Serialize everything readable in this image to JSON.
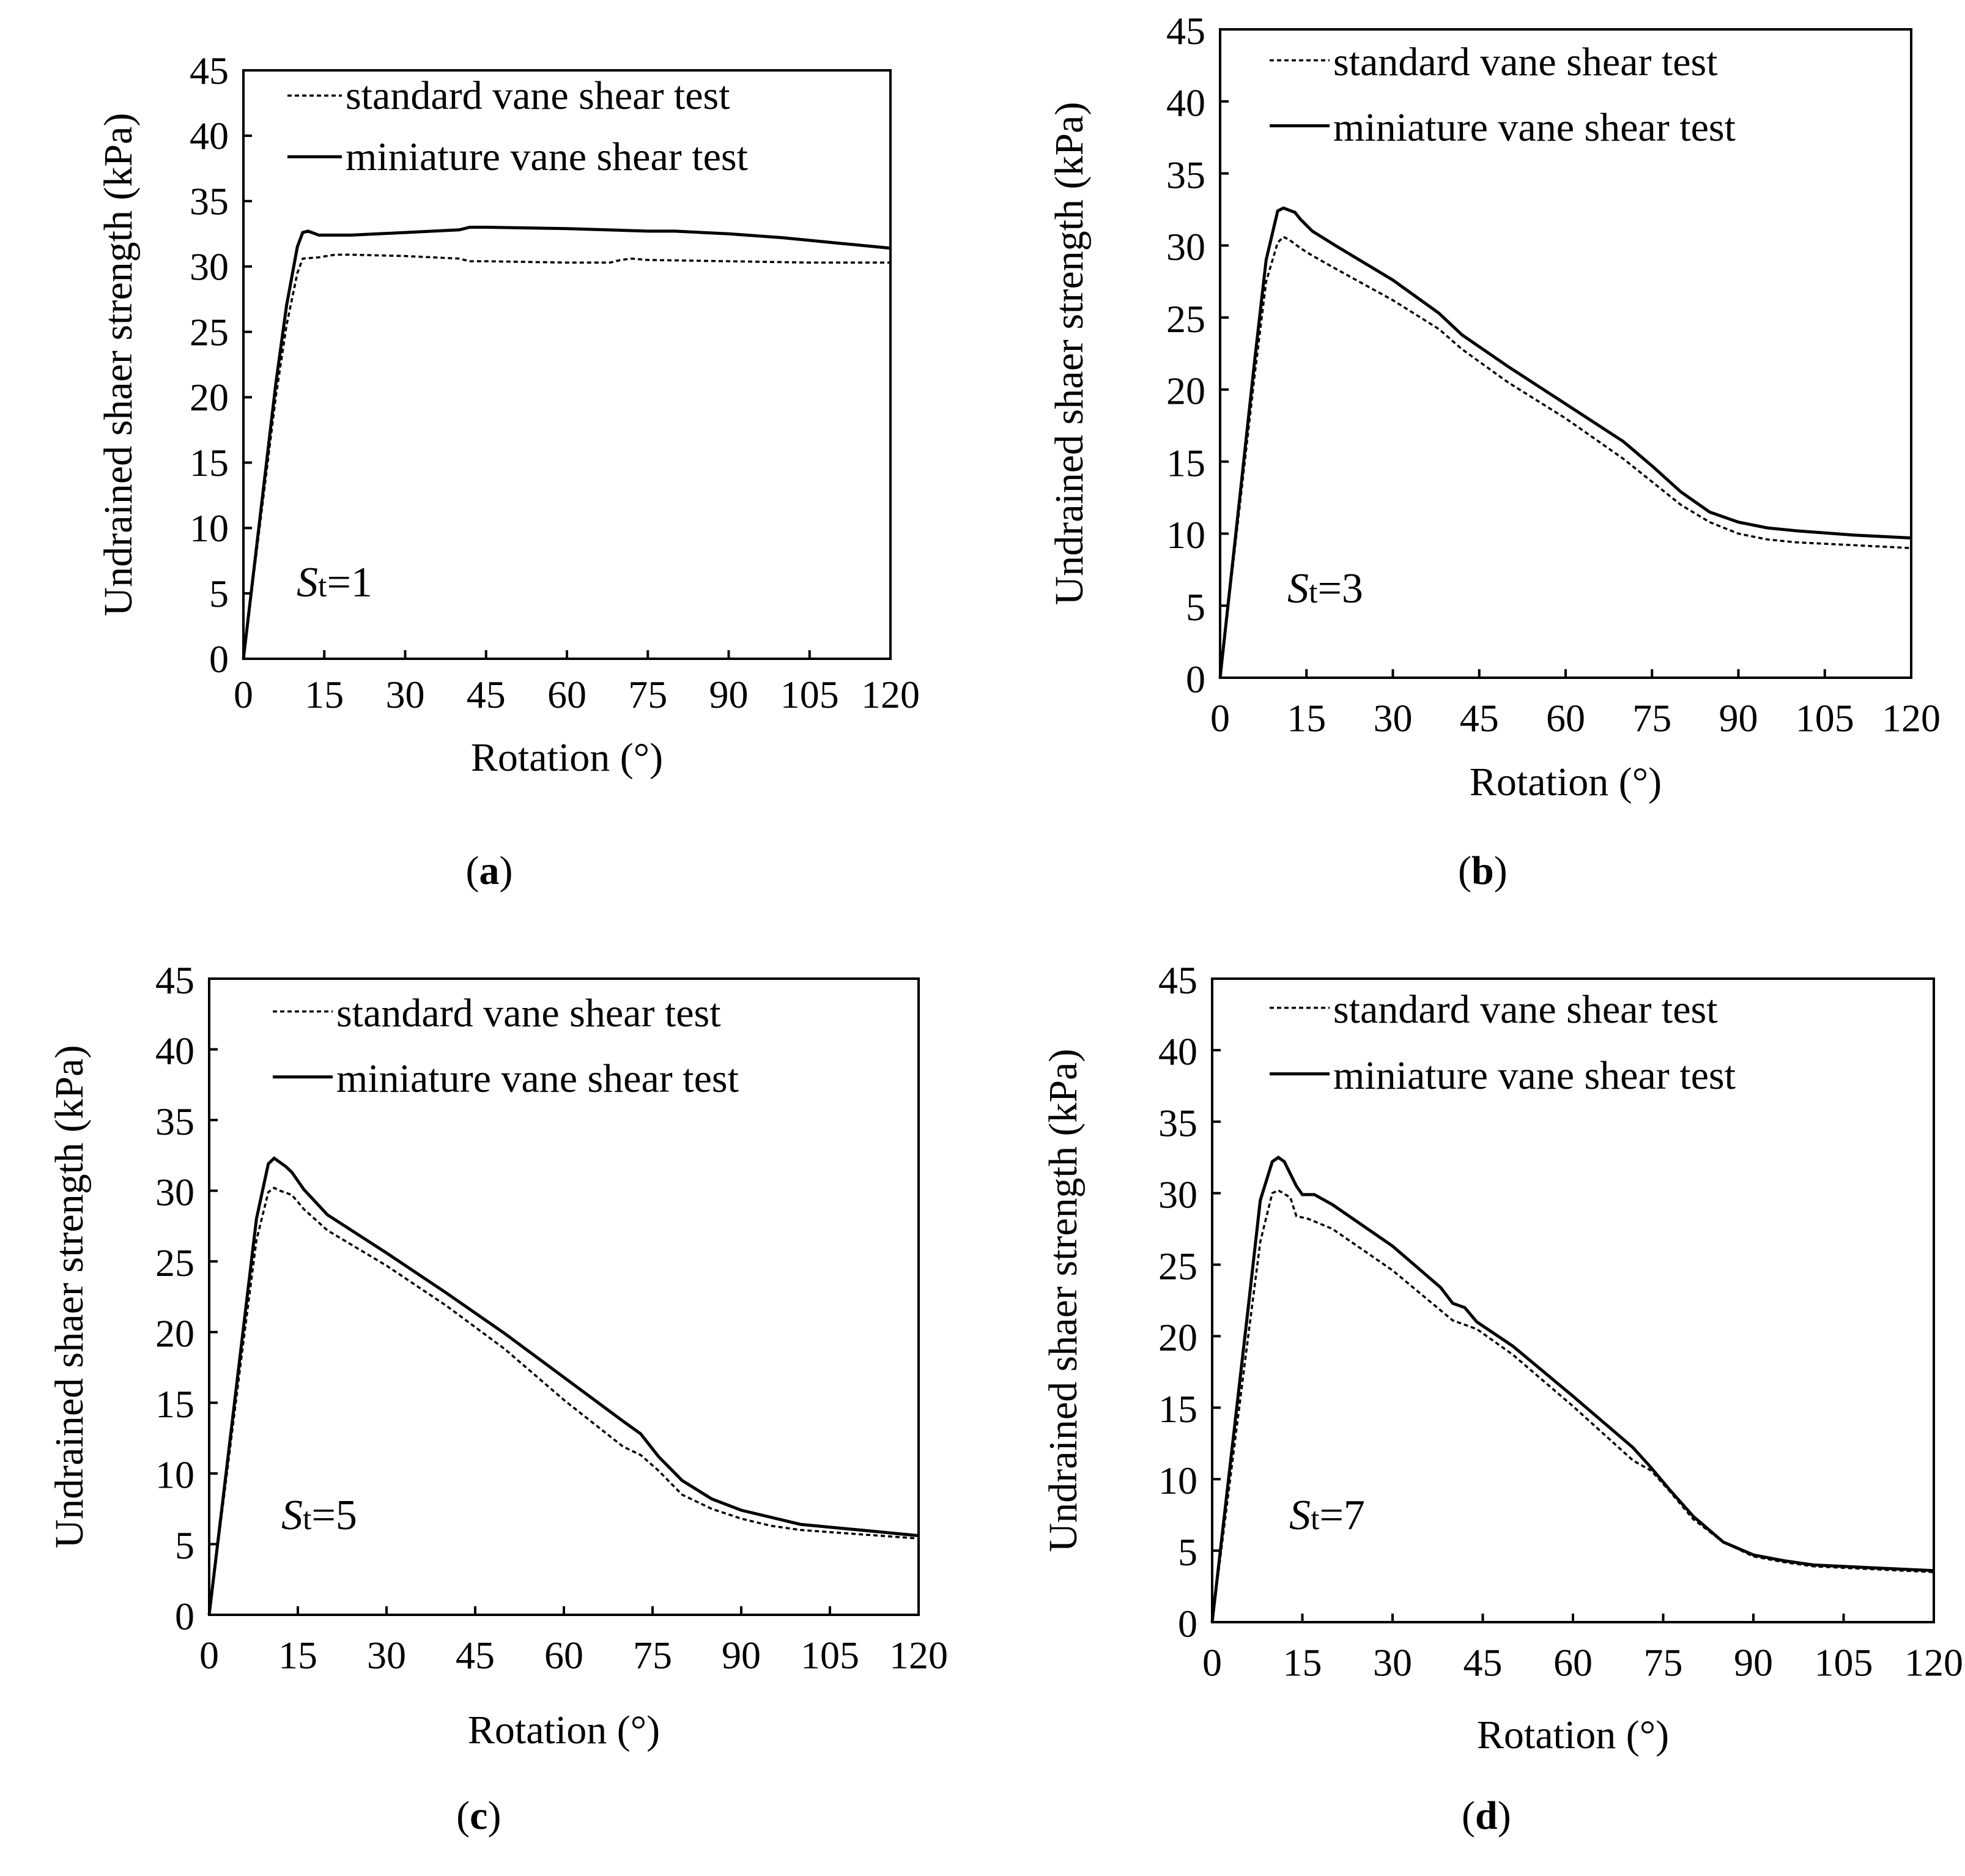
{
  "chart_data": [
    {
      "type": "line",
      "panel": "a",
      "caption": "(a)",
      "caption_letter": "a",
      "annotation_italic": "S",
      "annotation_sub": "t",
      "annotation_rest": "=1",
      "xlabel": "Rotation (°)",
      "ylabel": "Undrained shaer strength (kPa)",
      "xlim": [
        0,
        120
      ],
      "ylim": [
        0,
        45
      ],
      "xticks": [
        "0",
        "15",
        "30",
        "45",
        "60",
        "75",
        "90",
        "105",
        "120"
      ],
      "yticks": [
        "0",
        "5",
        "10",
        "15",
        "20",
        "25",
        "30",
        "35",
        "40",
        "45"
      ],
      "legend_position": "top-right",
      "series": [
        {
          "name": "standard vane shear test",
          "style": "dashed",
          "x": [
            0,
            3,
            6,
            8,
            10,
            11,
            14,
            17,
            20,
            30,
            40,
            42,
            45,
            60,
            68,
            70,
            72,
            75,
            90,
            105,
            120
          ],
          "y": [
            0,
            10,
            20,
            25.5,
            29.5,
            30.6,
            30.7,
            30.9,
            30.9,
            30.8,
            30.6,
            30.4,
            30.4,
            30.3,
            30.3,
            30.5,
            30.6,
            30.5,
            30.4,
            30.3,
            30.3
          ]
        },
        {
          "name": "miniature vane shear test",
          "style": "solid",
          "x": [
            0,
            3,
            6,
            8,
            10,
            11,
            12,
            14,
            15,
            20,
            30,
            40,
            42,
            45,
            60,
            75,
            80,
            90,
            100,
            110,
            120
          ],
          "y": [
            0,
            10.5,
            21,
            27,
            31.5,
            32.6,
            32.7,
            32.4,
            32.4,
            32.4,
            32.6,
            32.8,
            33.0,
            33.0,
            32.9,
            32.7,
            32.7,
            32.5,
            32.2,
            31.8,
            31.4
          ]
        }
      ]
    },
    {
      "type": "line",
      "panel": "b",
      "caption": "(b)",
      "caption_letter": "b",
      "annotation_italic": "S",
      "annotation_sub": "t",
      "annotation_rest": "=3",
      "xlabel": "Rotation (°)",
      "ylabel": "Undrained shaer strength (kPa)",
      "xlim": [
        0,
        120
      ],
      "ylim": [
        0,
        45
      ],
      "xticks": [
        "0",
        "15",
        "30",
        "45",
        "60",
        "75",
        "90",
        "105",
        "120"
      ],
      "yticks": [
        "0",
        "5",
        "10",
        "15",
        "20",
        "25",
        "30",
        "35",
        "40",
        "45"
      ],
      "legend_position": "top-right",
      "series": [
        {
          "name": "standard vane shear test",
          "style": "dashed",
          "x": [
            0,
            3,
            6,
            8,
            10,
            11,
            12,
            14,
            16,
            20,
            30,
            38,
            42,
            50,
            60,
            70,
            75,
            80,
            85,
            90,
            95,
            100,
            110,
            120
          ],
          "y": [
            0,
            10.5,
            21,
            27.5,
            30.2,
            30.6,
            30.4,
            29.8,
            29.3,
            28.4,
            26.2,
            24.2,
            22.8,
            20.5,
            18.0,
            15.2,
            13.6,
            12.0,
            10.8,
            10.0,
            9.6,
            9.4,
            9.2,
            9.0
          ]
        },
        {
          "name": "miniature vane shear test",
          "style": "solid",
          "x": [
            0,
            3,
            6,
            8,
            10,
            11,
            13,
            14,
            16,
            20,
            30,
            38,
            42,
            50,
            60,
            70,
            75,
            80,
            85,
            90,
            95,
            100,
            110,
            120
          ],
          "y": [
            0,
            11,
            22,
            29,
            32.4,
            32.6,
            32.3,
            31.8,
            31.0,
            30.0,
            27.6,
            25.3,
            23.8,
            21.6,
            19.0,
            16.4,
            14.7,
            12.9,
            11.5,
            10.8,
            10.4,
            10.2,
            9.9,
            9.7
          ]
        }
      ]
    },
    {
      "type": "line",
      "panel": "c",
      "caption": "(c)",
      "caption_letter": "c",
      "annotation_italic": "S",
      "annotation_sub": "t",
      "annotation_rest": "=5",
      "xlabel": "Rotation (°)",
      "ylabel": "Undrained shaer strength (kPa)",
      "xlim": [
        0,
        120
      ],
      "ylim": [
        0,
        45
      ],
      "xticks": [
        "0",
        "15",
        "30",
        "45",
        "60",
        "75",
        "90",
        "105",
        "120"
      ],
      "yticks": [
        "0",
        "5",
        "10",
        "15",
        "20",
        "25",
        "30",
        "35",
        "40",
        "45"
      ],
      "legend_position": "top-right",
      "series": [
        {
          "name": "standard vane shear test",
          "style": "dashed",
          "x": [
            0,
            3,
            6,
            8,
            10,
            11,
            12,
            14,
            16,
            20,
            30,
            40,
            50,
            60,
            70,
            73,
            76,
            80,
            85,
            90,
            95,
            100,
            110,
            120
          ],
          "y": [
            0,
            10,
            20,
            26.5,
            29.9,
            30.2,
            30.0,
            29.7,
            28.7,
            27.2,
            24.7,
            21.9,
            18.8,
            15.2,
            11.9,
            11.3,
            10.2,
            8.5,
            7.5,
            6.8,
            6.3,
            6.0,
            5.7,
            5.4
          ]
        },
        {
          "name": "miniature vane shear test",
          "style": "solid",
          "x": [
            0,
            3,
            6,
            8,
            10,
            11,
            13,
            14,
            16,
            20,
            30,
            40,
            50,
            60,
            70,
            73,
            76,
            80,
            85,
            90,
            95,
            100,
            110,
            120
          ],
          "y": [
            0,
            10.5,
            21,
            28,
            31.9,
            32.3,
            31.7,
            31.3,
            30.1,
            28.3,
            25.6,
            22.8,
            19.9,
            16.8,
            13.7,
            12.8,
            11.2,
            9.5,
            8.2,
            7.4,
            6.9,
            6.4,
            6.0,
            5.6
          ]
        }
      ]
    },
    {
      "type": "line",
      "panel": "d",
      "caption": "(d)",
      "caption_letter": "d",
      "annotation_italic": "S",
      "annotation_sub": "t",
      "annotation_rest": "=7",
      "xlabel": "Rotation (°)",
      "ylabel": "Undrained shaer strength (kPa)",
      "xlim": [
        0,
        120
      ],
      "ylim": [
        0,
        45
      ],
      "xticks": [
        "0",
        "15",
        "30",
        "45",
        "60",
        "75",
        "90",
        "105",
        "120"
      ],
      "yticks": [
        "0",
        "5",
        "10",
        "15",
        "20",
        "25",
        "30",
        "35",
        "40",
        "45"
      ],
      "legend_position": "top-right",
      "series": [
        {
          "name": "standard vane shear test",
          "style": "dashed",
          "x": [
            0,
            3,
            6,
            8,
            10,
            11,
            13,
            14,
            16,
            20,
            30,
            38,
            40,
            44,
            50,
            60,
            70,
            73,
            76,
            80,
            85,
            90,
            95,
            100,
            110,
            120
          ],
          "y": [
            0,
            10,
            20,
            26.6,
            30.0,
            30.2,
            29.7,
            28.4,
            28.2,
            27.5,
            24.6,
            21.8,
            21.1,
            20.5,
            18.7,
            15.1,
            11.3,
            10.6,
            9.2,
            7.2,
            5.6,
            4.6,
            4.2,
            3.9,
            3.7,
            3.5
          ]
        },
        {
          "name": "miniature vane shear test",
          "style": "solid",
          "x": [
            0,
            3,
            6,
            8,
            10,
            11,
            12,
            14,
            15,
            17,
            20,
            30,
            38,
            40,
            42,
            44,
            50,
            60,
            70,
            73,
            76,
            80,
            85,
            90,
            95,
            100,
            110,
            120
          ],
          "y": [
            0,
            11,
            22,
            29.5,
            32.2,
            32.5,
            32.2,
            30.5,
            29.9,
            29.9,
            29.2,
            26.3,
            23.4,
            22.3,
            22.0,
            21.0,
            19.3,
            15.8,
            12.2,
            10.8,
            9.3,
            7.4,
            5.6,
            4.7,
            4.3,
            4.0,
            3.8,
            3.6
          ]
        }
      ]
    }
  ]
}
